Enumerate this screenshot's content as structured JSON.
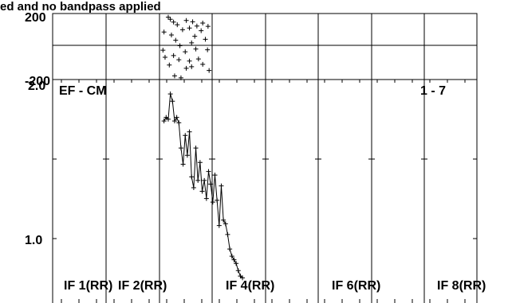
{
  "chart_data": [
    {
      "type": "scatter",
      "title": "ed and no bandpass applied",
      "ylim": [
        -200,
        200
      ],
      "y_tick_labels": [
        "200",
        "-200"
      ],
      "grid": true,
      "series": [
        {
          "marker": "+",
          "points": [
            {
              "x": 2.18,
              "y": 178
            },
            {
              "x": 2.22,
              "y": 165
            },
            {
              "x": 2.28,
              "y": 148
            },
            {
              "x": 2.35,
              "y": 132
            },
            {
              "x": 2.52,
              "y": 158
            },
            {
              "x": 2.64,
              "y": 150
            },
            {
              "x": 2.72,
              "y": 124
            },
            {
              "x": 2.1,
              "y": 88
            },
            {
              "x": 2.24,
              "y": 70
            },
            {
              "x": 2.45,
              "y": 102
            },
            {
              "x": 2.58,
              "y": 112
            },
            {
              "x": 2.83,
              "y": 142
            },
            {
              "x": 2.93,
              "y": 122
            },
            {
              "x": 2.8,
              "y": 96
            },
            {
              "x": 2.32,
              "y": 38
            },
            {
              "x": 2.62,
              "y": 22
            },
            {
              "x": 2.88,
              "y": 44
            },
            {
              "x": 2.08,
              "y": -22
            },
            {
              "x": 2.28,
              "y": -55
            },
            {
              "x": 2.5,
              "y": -32
            },
            {
              "x": 2.7,
              "y": -15
            },
            {
              "x": 2.75,
              "y": -75
            },
            {
              "x": 2.2,
              "y": -112
            },
            {
              "x": 2.38,
              "y": -80
            },
            {
              "x": 2.52,
              "y": -132
            },
            {
              "x": 2.62,
              "y": -122
            },
            {
              "x": 2.83,
              "y": -108
            },
            {
              "x": 2.3,
              "y": -178
            },
            {
              "x": 2.42,
              "y": -190
            },
            {
              "x": 2.95,
              "y": -145
            },
            {
              "x": 2.12,
              "y": -65
            },
            {
              "x": 2.68,
              "y": 62
            },
            {
              "x": 2.4,
              "y": 5
            },
            {
              "x": 2.92,
              "y": -20
            },
            {
              "x": 2.58,
              "y": -88
            }
          ]
        }
      ]
    },
    {
      "type": "line",
      "ylim": [
        0.8,
        2.0
      ],
      "y_tick_labels": [
        "2.0",
        "1.0"
      ],
      "grid": true,
      "annotations": [
        "EF - CM",
        "1 - 7"
      ],
      "panel_labels": [
        "IF 1(RR)",
        "IF 2(RR)",
        "IF 4(RR)",
        "IF 6(RR)",
        "IF 8(RR)"
      ],
      "series": [
        {
          "marker": "+",
          "x": [
            2.1,
            2.14,
            2.18,
            2.22,
            2.26,
            2.3,
            2.34,
            2.38,
            2.42,
            2.46,
            2.5,
            2.54,
            2.58,
            2.62,
            2.66,
            2.7,
            2.74,
            2.78,
            2.82,
            2.86,
            2.9,
            2.94,
            2.98,
            3.02,
            3.06,
            3.1,
            3.14,
            3.18,
            3.22,
            3.26,
            3.3,
            3.34,
            3.38,
            3.42,
            3.46,
            3.5,
            3.54,
            3.58
          ],
          "y": [
            1.77,
            1.79,
            1.78,
            1.92,
            1.88,
            1.77,
            1.79,
            1.76,
            1.62,
            1.53,
            1.69,
            1.58,
            1.71,
            1.46,
            1.4,
            1.62,
            1.44,
            1.54,
            1.38,
            1.44,
            1.34,
            1.49,
            1.42,
            1.32,
            1.47,
            1.33,
            1.19,
            1.41,
            1.22,
            1.2,
            1.14,
            1.06,
            1.02,
            1.0,
            0.98,
            0.94,
            0.91,
            0.9
          ]
        }
      ]
    }
  ]
}
